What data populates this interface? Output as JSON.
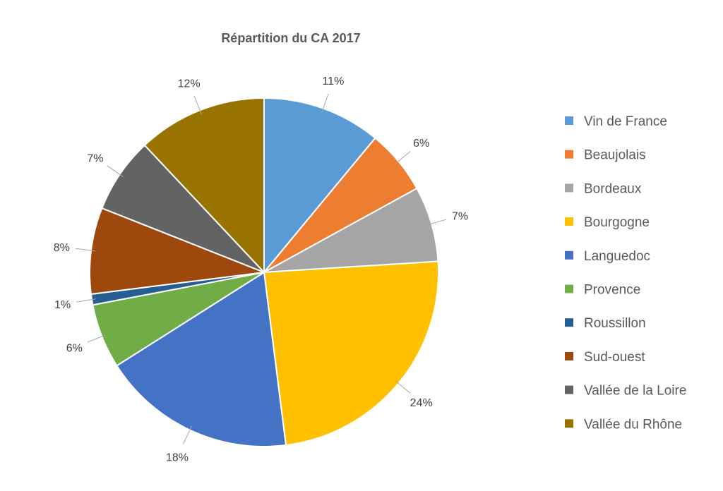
{
  "chart_data": {
    "type": "pie",
    "title": "Répartition du CA 2017",
    "categories": [
      "Vin de France",
      "Beaujolais",
      "Bordeaux",
      "Bourgogne",
      "Languedoc",
      "Provence",
      "Roussillon",
      "Sud-ouest",
      "Vallée de la Loire",
      "Vallée du Rhône"
    ],
    "values": [
      11,
      6,
      7,
      24,
      18,
      6,
      1,
      8,
      7,
      12
    ],
    "data_labels": [
      "11%",
      "6%",
      "7%",
      "24%",
      "18%",
      "6%",
      "1%",
      "8%",
      "7%",
      "12%"
    ],
    "colors": [
      "#5B9BD5",
      "#ED7D31",
      "#A5A5A5",
      "#FFC000",
      "#4472C4",
      "#70AD47",
      "#255E91",
      "#9E480E",
      "#636363",
      "#997300"
    ],
    "legend": "right"
  }
}
